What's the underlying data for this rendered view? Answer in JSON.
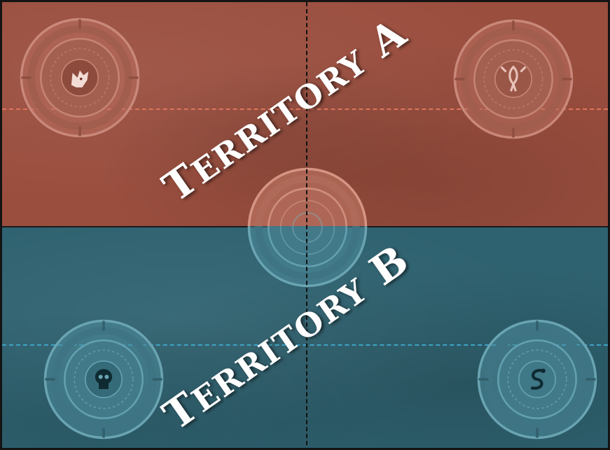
{
  "board": {
    "territory_a": {
      "label_first": "T",
      "label_rest": "ERRITORY",
      "label_letter": "A",
      "color": "#9a4e3e",
      "line_color": "#e0745d"
    },
    "territory_b": {
      "label_first": "T",
      "label_rest": "ERRITORY",
      "label_letter": "B",
      "color": "#2f6270",
      "line_color": "#3ea3c6"
    },
    "objectives": [
      {
        "name": "objective-wolf",
        "icon": "wolf-head-icon",
        "territory": "A"
      },
      {
        "name": "objective-phoenix",
        "icon": "phoenix-icon",
        "territory": "A"
      },
      {
        "name": "objective-center",
        "icon": "none",
        "territory": "center"
      },
      {
        "name": "objective-skull",
        "icon": "skull-icon",
        "territory": "B"
      },
      {
        "name": "objective-serpent",
        "icon": "serpent-icon",
        "territory": "B"
      }
    ]
  }
}
